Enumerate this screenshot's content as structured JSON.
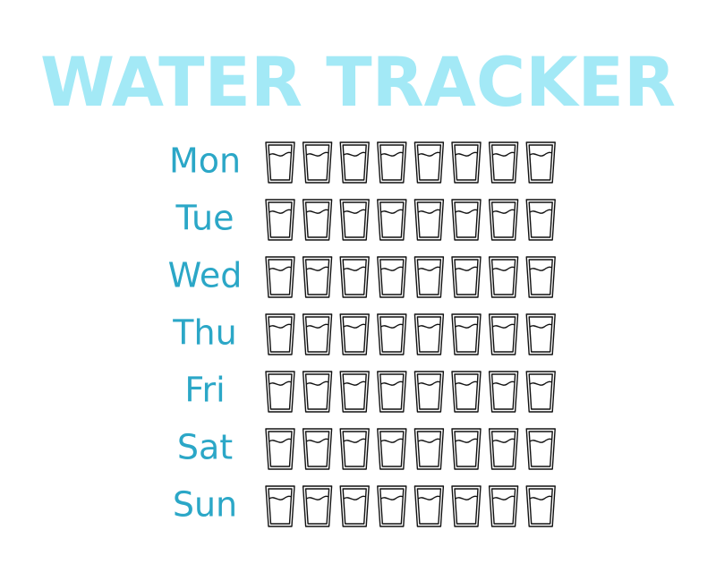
{
  "header": {
    "title": "WATER TRACKER"
  },
  "tracker": {
    "days": [
      "Mon",
      "Tue",
      "Wed",
      "Thu",
      "Fri",
      "Sat",
      "Sun"
    ]
  }
}
